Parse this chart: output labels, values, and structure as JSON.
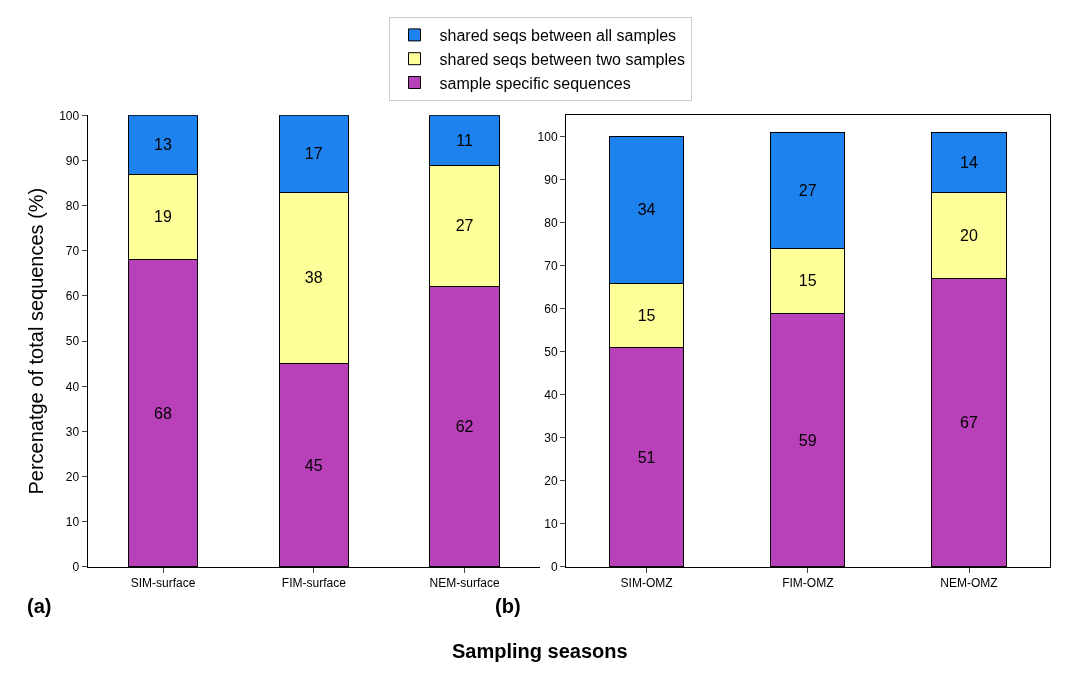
{
  "chart_data": [
    {
      "type": "bar",
      "stacked": true,
      "categories": [
        "SIM-surface",
        "FIM-surface",
        "NEM-surface"
      ],
      "ylabel": "Percenatge of total sequences (%)",
      "ylim": [
        0,
        100
      ],
      "yticks": [
        0,
        10,
        20,
        30,
        40,
        50,
        60,
        70,
        80,
        90,
        100
      ],
      "data_labels": true,
      "legend": "top",
      "annotations": [
        "(a)"
      ],
      "series": [
        {
          "name": "sample specific sequences",
          "color": "#b840b8",
          "values": [
            68,
            45,
            62
          ]
        },
        {
          "name": "shared seqs between two samples",
          "color": "#ffff99",
          "values": [
            19,
            38,
            27
          ]
        },
        {
          "name": "shared seqs between all samples",
          "color": "#1e82ee",
          "values": [
            13,
            17,
            11
          ]
        }
      ]
    },
    {
      "type": "bar",
      "stacked": true,
      "categories": [
        "SIM-OMZ",
        "FIM-OMZ",
        "NEM-OMZ"
      ],
      "xlabel": "Sampling seasons",
      "ylim": [
        0,
        105
      ],
      "yticks": [
        0,
        10,
        20,
        30,
        40,
        50,
        60,
        70,
        80,
        90,
        100
      ],
      "data_labels": true,
      "annotations": [
        "(b)"
      ],
      "series": [
        {
          "color": "#b840b8",
          "values": [
            51,
            59,
            67
          ]
        },
        {
          "color": "#ffff99",
          "values": [
            15,
            15,
            20
          ]
        },
        {
          "color": "#1e82ee",
          "values": [
            34,
            27,
            14
          ]
        }
      ]
    }
  ]
}
